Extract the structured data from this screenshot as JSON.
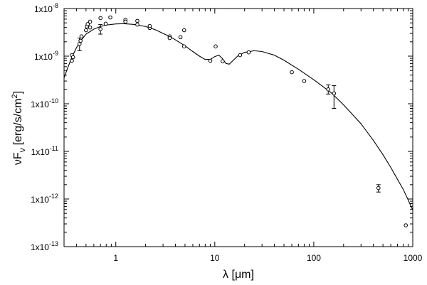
{
  "chart_data": {
    "type": "scatter",
    "x_scale": "log",
    "y_scale": "log",
    "xlim": [
      0.3,
      1000
    ],
    "ylim": [
      1e-13,
      1e-08
    ],
    "xlabel": "λ [μm]",
    "ylabel_main": "νF",
    "ylabel_sub": "ν",
    "ylabel_unit": "[erg/s/cm",
    "ylabel_sup": "2",
    "ylabel_close": "]",
    "x_ticks": [
      {
        "value": 1,
        "label": "1"
      },
      {
        "value": 10,
        "label": "10"
      },
      {
        "value": 100,
        "label": "100"
      },
      {
        "value": 1000,
        "label": "1000"
      }
    ],
    "y_ticks": [
      {
        "value": 1e-13,
        "label": "1x10",
        "exp": "-13"
      },
      {
        "value": 1e-12,
        "label": "1x10",
        "exp": "-12"
      },
      {
        "value": 1e-11,
        "label": "1x10",
        "exp": "-11"
      },
      {
        "value": 1e-10,
        "label": "1x10",
        "exp": "-10"
      },
      {
        "value": 1e-09,
        "label": "1x10",
        "exp": "-9"
      },
      {
        "value": 1e-08,
        "label": "1x10",
        "exp": "-8"
      }
    ],
    "grid": false,
    "series": [
      {
        "kind": "model",
        "points": [
          [
            0.3,
            3.5e-10
          ],
          [
            0.33,
            6e-10
          ],
          [
            0.36,
            9.5e-10
          ],
          [
            0.4,
            1.5e-09
          ],
          [
            0.45,
            2.2e-09
          ],
          [
            0.5,
            2.9e-09
          ],
          [
            0.6,
            3.7e-09
          ],
          [
            0.7,
            4.2e-09
          ],
          [
            0.8,
            4.5e-09
          ],
          [
            1.0,
            4.75e-09
          ],
          [
            1.2,
            4.8e-09
          ],
          [
            1.5,
            4.65e-09
          ],
          [
            2.0,
            4.2e-09
          ],
          [
            2.5,
            3.6e-09
          ],
          [
            3.0,
            3e-09
          ],
          [
            3.5,
            2.6e-09
          ],
          [
            4.0,
            2.2e-09
          ],
          [
            5.0,
            1.65e-09
          ],
          [
            6.0,
            1.25e-09
          ],
          [
            7.0,
            1e-09
          ],
          [
            8.0,
            8.5e-10
          ],
          [
            9.0,
            8.5e-10
          ],
          [
            10.0,
            9.8e-10
          ],
          [
            11.0,
            1.05e-09
          ],
          [
            12.0,
            8.8e-10
          ],
          [
            13.0,
            7e-10
          ],
          [
            14.0,
            6.8e-10
          ],
          [
            15.0,
            7.8e-10
          ],
          [
            17.0,
            1e-09
          ],
          [
            20.0,
            1.2e-09
          ],
          [
            25.0,
            1.3e-09
          ],
          [
            30.0,
            1.25e-09
          ],
          [
            40.0,
            1.05e-09
          ],
          [
            50.0,
            8.2e-10
          ],
          [
            70.0,
            5.3e-10
          ],
          [
            100.0,
            3.2e-10
          ],
          [
            150.0,
            1.7e-10
          ],
          [
            200.0,
            9.5e-11
          ],
          [
            300.0,
            3.8e-11
          ],
          [
            400.0,
            1.7e-11
          ],
          [
            500.0,
            8.5e-12
          ],
          [
            600.0,
            4.6e-12
          ],
          [
            700.0,
            2.6e-12
          ],
          [
            800.0,
            1.6e-12
          ],
          [
            900.0,
            9.5e-13
          ],
          [
            1000.0,
            5.8e-13
          ]
        ]
      },
      {
        "kind": "observed",
        "points": [
          {
            "x": 0.36,
            "y": 8e-10
          },
          {
            "x": 0.36,
            "y": 1.05e-09
          },
          {
            "x": 0.37,
            "y": 9.5e-10
          },
          {
            "x": 0.43,
            "y": 1.8e-09,
            "err": [
              1.3e-09,
              2.4e-09
            ]
          },
          {
            "x": 0.44,
            "y": 2.1e-09
          },
          {
            "x": 0.45,
            "y": 2.6e-09
          },
          {
            "x": 0.5,
            "y": 3.5e-09
          },
          {
            "x": 0.51,
            "y": 4.2e-09
          },
          {
            "x": 0.52,
            "y": 4.7e-09
          },
          {
            "x": 0.55,
            "y": 5.3e-09
          },
          {
            "x": 0.55,
            "y": 4e-09
          },
          {
            "x": 0.7,
            "y": 3.7e-09,
            "err": [
              2.9e-09,
              4.6e-09
            ]
          },
          {
            "x": 0.7,
            "y": 6.3e-09
          },
          {
            "x": 0.79,
            "y": 4.8e-09
          },
          {
            "x": 0.88,
            "y": 6.5e-09
          },
          {
            "x": 1.25,
            "y": 5.8e-09
          },
          {
            "x": 1.25,
            "y": 5.3e-09
          },
          {
            "x": 1.65,
            "y": 5.5e-09
          },
          {
            "x": 1.65,
            "y": 4.6e-09
          },
          {
            "x": 2.2,
            "y": 3.9e-09
          },
          {
            "x": 2.2,
            "y": 4.3e-09
          },
          {
            "x": 3.5,
            "y": 2.6e-09
          },
          {
            "x": 3.5,
            "y": 2.4e-09
          },
          {
            "x": 4.5,
            "y": 2.5e-09
          },
          {
            "x": 4.9,
            "y": 3.5e-09
          },
          {
            "x": 4.9,
            "y": 1.6e-09
          },
          {
            "x": 9.0,
            "y": 8e-10
          },
          {
            "x": 10.2,
            "y": 1.6e-09
          },
          {
            "x": 12.0,
            "y": 7.8e-10
          },
          {
            "x": 18.0,
            "y": 1.05e-09
          },
          {
            "x": 22.0,
            "y": 1.2e-09
          },
          {
            "x": 60.0,
            "y": 4.6e-10
          },
          {
            "x": 80.0,
            "y": 3e-10
          },
          {
            "x": 140.0,
            "y": 2e-10,
            "err": [
              1.6e-10,
              2.5e-10
            ]
          },
          {
            "x": 160.0,
            "y": 1.65e-10,
            "err": [
              8e-11,
              2.4e-10
            ]
          },
          {
            "x": 450.0,
            "y": 1.7e-12,
            "err": [
              1.4e-12,
              2e-12
            ]
          },
          {
            "x": 850.0,
            "y": 2.8e-13
          }
        ]
      }
    ]
  }
}
